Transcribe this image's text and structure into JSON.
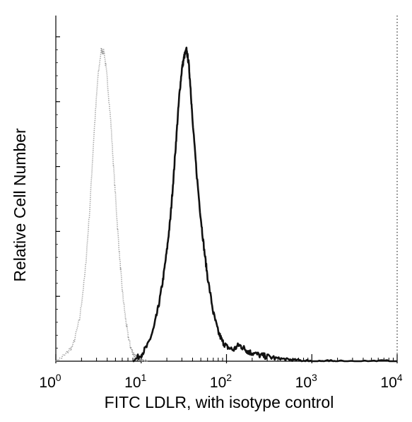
{
  "chart_data": {
    "type": "line",
    "xscale": "log",
    "xlim": [
      1,
      10000
    ],
    "xlabel": "FITC  LDLR,  with isotype control",
    "ylabel": "Relative Cell Number",
    "title": "",
    "grid": false,
    "legend": "none",
    "x_ticks": [
      {
        "value": 1,
        "base": "10",
        "exp": "0"
      },
      {
        "value": 10,
        "base": "10",
        "exp": "1"
      },
      {
        "value": 100,
        "base": "10",
        "exp": "2"
      },
      {
        "value": 1000,
        "base": "10",
        "exp": "3"
      },
      {
        "value": 10000,
        "base": "10",
        "exp": "4"
      }
    ],
    "y_tick_values": [
      0.2,
      0.4,
      0.6,
      0.8,
      1.0
    ],
    "ylim": [
      0,
      1.0
    ],
    "series": [
      {
        "color": "#9a9a9a",
        "style": "dotted",
        "x": [
          1.0,
          1.3,
          1.6,
          1.9,
          2.2,
          2.5,
          2.8,
          3.1,
          3.4,
          3.7,
          4.0,
          4.4,
          4.8,
          5.2,
          5.6,
          6.0,
          6.5,
          7.0,
          7.5,
          8.0,
          8.6,
          9.3,
          10.0,
          11.0,
          12.0
        ],
        "y": [
          0.0,
          0.02,
          0.05,
          0.13,
          0.27,
          0.47,
          0.7,
          0.87,
          0.96,
          0.95,
          0.87,
          0.74,
          0.58,
          0.44,
          0.32,
          0.22,
          0.14,
          0.08,
          0.045,
          0.025,
          0.013,
          0.007,
          0.003,
          0.001,
          0.0
        ]
      },
      {
        "color": "#111111",
        "style": "solid",
        "x": [
          8.0,
          10.0,
          12.0,
          14.0,
          16.0,
          18.0,
          20.0,
          22.0,
          24.0,
          26.0,
          28.0,
          30.0,
          32.0,
          34.0,
          36.0,
          38.0,
          40.0,
          45.0,
          50.0,
          55.0,
          60.0,
          70.0,
          80.0,
          90.0,
          100.0,
          120.0,
          140.0,
          160.0,
          180.0,
          200.0,
          250.0,
          300.0,
          400.0,
          500.0,
          600.0,
          800.0,
          1000.0,
          1500.0,
          2000.0,
          5000.0,
          10000.0
        ],
        "y": [
          0.0,
          0.02,
          0.05,
          0.1,
          0.17,
          0.25,
          0.34,
          0.44,
          0.57,
          0.7,
          0.82,
          0.9,
          0.94,
          0.96,
          0.92,
          0.84,
          0.74,
          0.57,
          0.44,
          0.34,
          0.26,
          0.15,
          0.09,
          0.06,
          0.045,
          0.035,
          0.05,
          0.04,
          0.03,
          0.025,
          0.018,
          0.014,
          0.009,
          0.006,
          0.004,
          0.002,
          0.001,
          0.0,
          0.0,
          0.0,
          0.0
        ]
      }
    ]
  }
}
